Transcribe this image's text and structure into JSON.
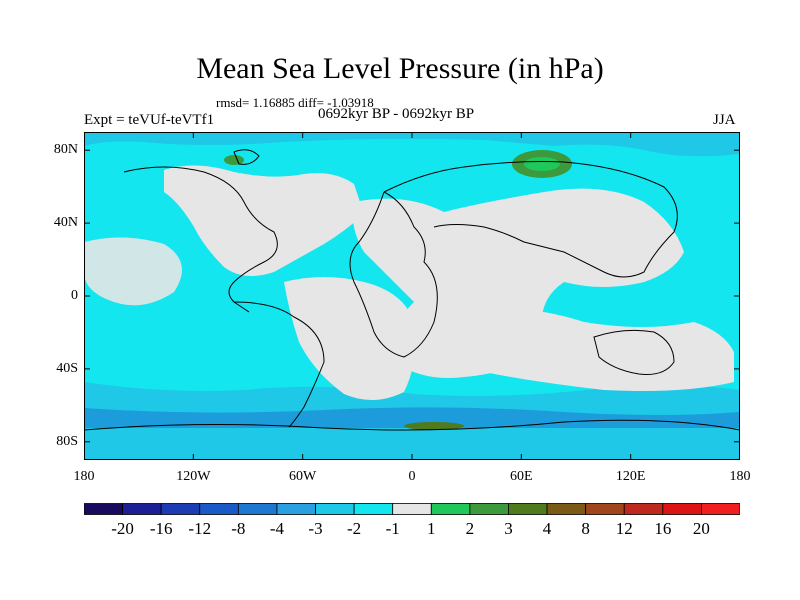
{
  "title": "Mean Sea Level Pressure (in hPa)",
  "stats": "rmsd= 1.16885 diff= -1.03918",
  "period": "0692kyr BP - 0692kyr BP",
  "experiment": "Expt = teVUf-teVTf1",
  "season": "JJA",
  "lat_labels": [
    "80N",
    "40N",
    "0",
    "40S",
    "80S"
  ],
  "lat_values": [
    80,
    40,
    0,
    -40,
    -80
  ],
  "lon_labels": [
    "180",
    "120W",
    "60W",
    "0",
    "60E",
    "120E",
    "180"
  ],
  "lon_values": [
    -180,
    -120,
    -60,
    0,
    60,
    120,
    180
  ],
  "colorbar": {
    "labels": [
      "-20",
      "-16",
      "-12",
      "-8",
      "-4",
      "-3",
      "-2",
      "-1",
      "1",
      "2",
      "3",
      "4",
      "8",
      "12",
      "16",
      "20"
    ],
    "colors": [
      "#1a0a5e",
      "#1e1e96",
      "#1c3cb4",
      "#1a5ac8",
      "#1e78d2",
      "#2aa0e0",
      "#1ec8e6",
      "#14e6f0",
      "#e6e6e6",
      "#1ec85a",
      "#3c9a3c",
      "#507a1e",
      "#7a5a14",
      "#a0461e",
      "#be281e",
      "#dc1414",
      "#f01e1e"
    ]
  },
  "palette": {
    "cyan": "#14e6f0",
    "blue": "#1ec8e6",
    "grey": "#e6e6e6",
    "green": "#1ec85a",
    "dgreen": "#3c9a3c"
  }
}
